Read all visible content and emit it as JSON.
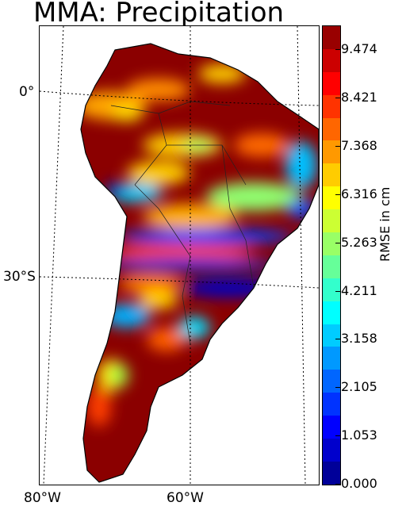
{
  "title": "MMA: Precipitation",
  "lat_labels": [
    "0°",
    "30°S"
  ],
  "lon_labels": [
    "80°W",
    "60°W"
  ],
  "colorbar": {
    "label": "RMSE in cm",
    "ticks": [
      "9.474",
      "8.421",
      "7.368",
      "6.316",
      "5.263",
      "4.211",
      "3.158",
      "2.105",
      "1.053",
      "0.000"
    ],
    "range": [
      0.0,
      10.0
    ],
    "colormap": "jet",
    "levels": 20
  },
  "colors": {
    "ocean": "#ffffff",
    "high": "#800000",
    "low": "#00007f",
    "coast": "#000000"
  }
}
